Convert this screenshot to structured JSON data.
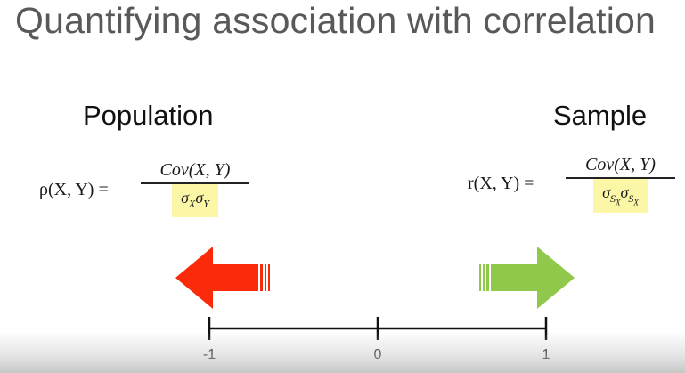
{
  "title": "Quantifying association with correlation",
  "population": {
    "heading": "Population",
    "lhs": "ρ(X, Y) =",
    "numerator": "Cov(X, Y)",
    "denominator": {
      "s1": "σ",
      "sub1": "X",
      "s2": "σ",
      "sub2": "Y"
    }
  },
  "sample": {
    "heading": "Sample",
    "lhs": "r(X, Y) =",
    "numerator": "Cov(X, Y)",
    "denominator": {
      "s1": "σ",
      "sub1": "S",
      "subsub1": "X",
      "s2": "σ",
      "sub2": "S",
      "subsub2": "X"
    }
  },
  "number_line": {
    "ticks": [
      {
        "value": -1,
        "label": "-1"
      },
      {
        "value": 0,
        "label": "0"
      },
      {
        "value": 1,
        "label": "1"
      }
    ]
  },
  "colors": {
    "left_arrow": "#fb2a0a",
    "right_arrow": "#8fc84a",
    "highlight": "#fbf7a6",
    "title": "#595959"
  }
}
